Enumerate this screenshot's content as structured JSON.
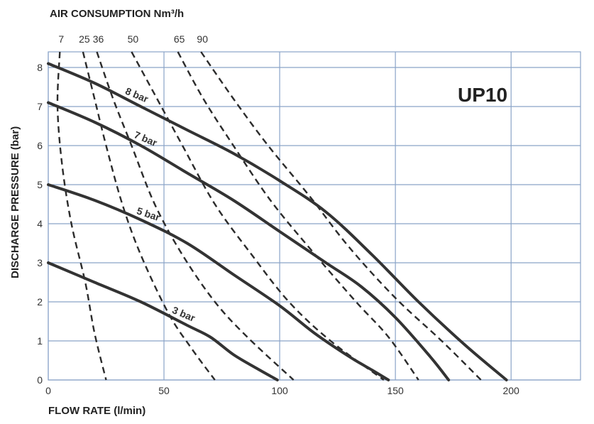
{
  "chart_data": {
    "type": "line",
    "title": "AIR CONSUMPTION Nm³/h",
    "model": "UP10",
    "xlabel": "FLOW RATE (l/min)",
    "ylabel": "DISCHARGE PRESSURE (bar)",
    "xlim": [
      0,
      230
    ],
    "ylim": [
      0,
      8.4
    ],
    "xticks": [
      "0",
      "50",
      "100",
      "150",
      "200"
    ],
    "yticks": [
      "0",
      "1",
      "2",
      "3",
      "4",
      "5",
      "6",
      "7",
      "8"
    ],
    "grid": true,
    "pressure_curves": [
      {
        "name": "8 bar",
        "x": [
          0,
          20,
          40,
          60,
          80,
          100,
          120,
          140,
          160,
          180,
          198
        ],
        "y": [
          8.1,
          7.6,
          7.0,
          6.4,
          5.8,
          5.1,
          4.3,
          3.2,
          2.0,
          0.9,
          0
        ]
      },
      {
        "name": "7 bar",
        "x": [
          0,
          20,
          40,
          60,
          80,
          100,
          120,
          135,
          150,
          165,
          173
        ],
        "y": [
          7.1,
          6.6,
          6.0,
          5.3,
          4.6,
          3.8,
          3.0,
          2.4,
          1.6,
          0.6,
          0
        ]
      },
      {
        "name": "5 bar",
        "x": [
          0,
          20,
          40,
          60,
          80,
          100,
          115,
          130,
          140,
          147
        ],
        "y": [
          5.0,
          4.6,
          4.1,
          3.5,
          2.7,
          1.9,
          1.2,
          0.6,
          0.25,
          0
        ]
      },
      {
        "name": "3 bar",
        "x": [
          0,
          20,
          40,
          60,
          70,
          80,
          90,
          99
        ],
        "y": [
          3.0,
          2.5,
          2.0,
          1.4,
          1.1,
          0.65,
          0.3,
          0
        ]
      }
    ],
    "air_consumption_curves": [
      {
        "name": "7",
        "x": [
          5,
          4,
          6,
          10,
          16,
          20,
          25
        ],
        "y": [
          8.4,
          7.0,
          5.5,
          4.0,
          2.5,
          1.2,
          0
        ]
      },
      {
        "name": "25",
        "x": [
          15,
          20,
          25,
          32,
          40,
          52,
          62,
          72
        ],
        "y": [
          8.4,
          7.2,
          6.0,
          4.5,
          3.2,
          1.7,
          0.8,
          0
        ]
      },
      {
        "name": "36",
        "x": [
          21,
          28,
          36,
          46,
          58,
          72,
          86,
          106
        ],
        "y": [
          8.4,
          7.2,
          6.0,
          4.5,
          3.2,
          2.0,
          1.1,
          0
        ]
      },
      {
        "name": "50",
        "x": [
          36,
          47,
          58,
          72,
          88,
          104,
          122,
          145
        ],
        "y": [
          8.4,
          7.2,
          6.0,
          4.5,
          3.2,
          2.0,
          1.0,
          0
        ]
      },
      {
        "name": "65",
        "x": [
          56,
          67,
          80,
          96,
          114,
          133,
          147,
          160
        ],
        "y": [
          8.4,
          7.2,
          6.0,
          4.6,
          3.3,
          2.0,
          1.1,
          0
        ]
      },
      {
        "name": "90",
        "x": [
          66,
          80,
          95,
          113,
          130,
          150,
          170,
          187
        ],
        "y": [
          8.4,
          7.2,
          6.0,
          4.7,
          3.4,
          2.1,
          1.0,
          0
        ]
      }
    ]
  }
}
